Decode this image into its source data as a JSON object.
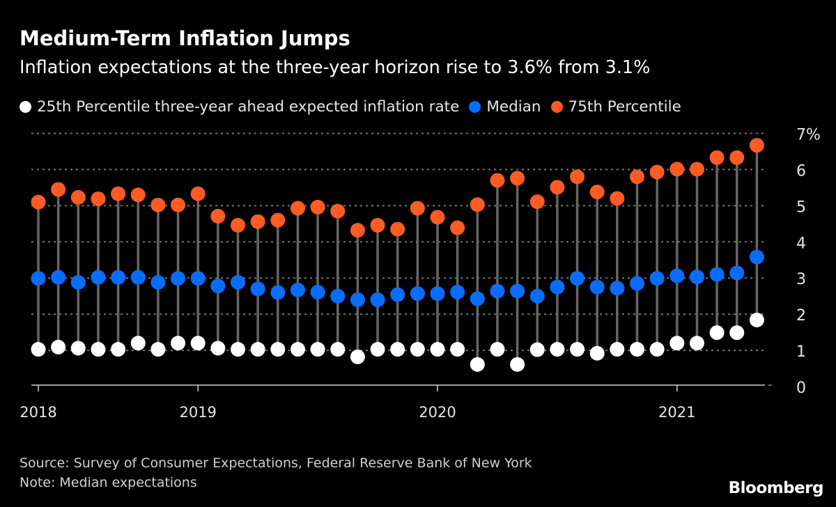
{
  "title": "Medium-Term Inflation Jumps",
  "subtitle": "Inflation expectations at the three-year horizon rise to 3.6% from 3.1%",
  "source": "Source: Survey of Consumer Expectations, Federal Reserve Bank of New York",
  "note": "Note: Median expectations",
  "logo": "Bloomberg",
  "colors": {
    "background": "#000000",
    "p25": "#ffffff",
    "median": "#0a6cff",
    "p75": "#ff5b24",
    "stem": "#666666",
    "grid": "#777777"
  },
  "chart_data": {
    "type": "scatter",
    "subtype": "dumbbell",
    "title": "Medium-Term Inflation Jumps",
    "ylim": [
      0,
      7
    ],
    "y_ticks": [
      "0",
      "1",
      "2",
      "3",
      "4",
      "5",
      "6",
      "7%"
    ],
    "y_axis_side": "right",
    "grid": "horizontal dotted",
    "x_ticks": [
      {
        "label": "2018",
        "index": 0
      },
      {
        "label": "2019",
        "index": 8
      },
      {
        "label": "2020",
        "index": 20
      },
      {
        "label": "2021",
        "index": 32
      }
    ],
    "legend_position": "top",
    "series": [
      {
        "name": "25th Percentile three-year ahead expected inflation rate",
        "color": "#ffffff",
        "values": [
          1.03,
          1.09,
          1.06,
          1.03,
          1.03,
          1.2,
          1.03,
          1.2,
          1.2,
          1.06,
          1.03,
          1.03,
          1.03,
          1.03,
          1.03,
          1.03,
          0.82,
          1.03,
          1.03,
          1.03,
          1.03,
          1.03,
          0.61,
          1.03,
          0.61,
          1.02,
          1.03,
          1.03,
          0.92,
          1.03,
          1.03,
          1.03,
          1.2,
          1.2,
          1.49,
          1.49,
          1.84
        ]
      },
      {
        "name": "Median",
        "color": "#0a6cff",
        "values": [
          2.99,
          3.02,
          2.88,
          3.02,
          3.02,
          3.02,
          2.88,
          2.99,
          2.99,
          2.78,
          2.88,
          2.7,
          2.6,
          2.67,
          2.61,
          2.5,
          2.4,
          2.4,
          2.54,
          2.57,
          2.57,
          2.61,
          2.43,
          2.64,
          2.64,
          2.5,
          2.75,
          2.99,
          2.75,
          2.72,
          2.85,
          2.99,
          3.06,
          3.03,
          3.1,
          3.14,
          3.58
        ]
      },
      {
        "name": "75th Percentile",
        "color": "#ff5b24",
        "values": [
          5.1,
          5.45,
          5.23,
          5.19,
          5.33,
          5.3,
          5.02,
          5.02,
          5.33,
          4.71,
          4.46,
          4.56,
          4.6,
          4.93,
          4.96,
          4.85,
          4.32,
          4.46,
          4.35,
          4.93,
          4.68,
          4.39,
          5.03,
          5.7,
          5.76,
          5.11,
          5.51,
          5.8,
          5.38,
          5.2,
          5.8,
          5.93,
          6.01,
          6.01,
          6.33,
          6.33,
          6.67
        ]
      }
    ]
  }
}
